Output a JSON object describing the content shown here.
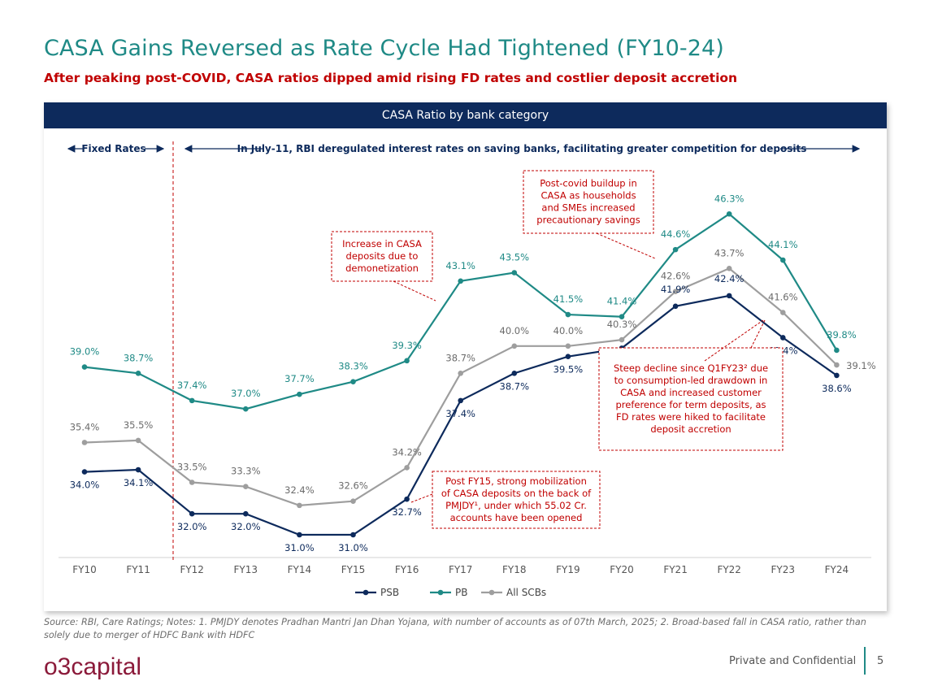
{
  "page": {
    "title": "CASA Gains Reversed as Rate Cycle Had Tightened (FY10-24)",
    "subtitle": "After peaking post-COVID, CASA ratios dipped amid rising FD rates and costlier deposit accretion",
    "footnote": "Source: RBI, Care Ratings; Notes: 1. PMJDY denotes Pradhan Mantri Jan Dhan Yojana, with number of accounts as of 07th March, 2025; 2. Broad-based fall in CASA ratio, rather than solely due to merger of HDFC Bank with HDFC",
    "logo_text": "o3capital",
    "confidential": "Private and Confidential",
    "page_number": "5"
  },
  "colors": {
    "title": "#1f8a86",
    "subtitle": "#c00000",
    "header": "#0d2a5c",
    "psb": "#0d2a5c",
    "pb": "#1f8a86",
    "scb": "#9e9e9e",
    "annotation": "#c00000"
  },
  "chart_data": {
    "type": "line",
    "title": "CASA Ratio by bank category",
    "categories": [
      "FY10",
      "FY11",
      "FY12",
      "FY13",
      "FY14",
      "FY15",
      "FY16",
      "FY17",
      "FY18",
      "FY19",
      "FY20",
      "FY21",
      "FY22",
      "FY23",
      "FY24"
    ],
    "series": [
      {
        "name": "PSB",
        "color": "#0d2a5c",
        "values": [
          34.0,
          34.1,
          32.0,
          32.0,
          31.0,
          31.0,
          32.7,
          37.4,
          38.7,
          39.5,
          39.9,
          41.9,
          42.4,
          40.4,
          38.6
        ],
        "labels": [
          "34.0%",
          "34.1%",
          "32.0%",
          "32.0%",
          "31.0%",
          "31.0%",
          "32.7%",
          "37.4%",
          "38.7%",
          "39.5%",
          "39.9%",
          "41.9%",
          "42.4%",
          "40.4%",
          "38.6%"
        ]
      },
      {
        "name": "PB",
        "color": "#1f8a86",
        "values": [
          39.0,
          38.7,
          37.4,
          37.0,
          37.7,
          38.3,
          39.3,
          43.1,
          43.5,
          41.5,
          41.4,
          44.6,
          46.3,
          44.1,
          39.8
        ],
        "labels": [
          "39.0%",
          "38.7%",
          "37.4%",
          "37.0%",
          "37.7%",
          "38.3%",
          "39.3%",
          "43.1%",
          "43.5%",
          "41.5%",
          "41.4%",
          "44.6%",
          "46.3%",
          "44.1%",
          "39.8%"
        ]
      },
      {
        "name": "All SCBs",
        "color": "#9e9e9e",
        "values": [
          35.4,
          35.5,
          33.5,
          33.3,
          32.4,
          32.6,
          34.2,
          38.7,
          40.0,
          40.0,
          40.3,
          42.6,
          43.7,
          41.6,
          39.1
        ],
        "labels": [
          "35.4%",
          "35.5%",
          "33.5%",
          "33.3%",
          "32.4%",
          "32.6%",
          "34.2%",
          "38.7%",
          "40.0%",
          "40.0%",
          "40.3%",
          "42.6%",
          "43.7%",
          "41.6%",
          "39.1%"
        ]
      }
    ],
    "ylim": [
      29.5,
      48
    ],
    "grid": false,
    "legend": "bottom-center",
    "regime_labels": {
      "fixed": "Fixed Rates",
      "deregulated": "In July-11, RBI deregulated interest rates on saving banks, facilitating greater competition for deposits"
    },
    "annotations": [
      {
        "id": "demonetization",
        "lines": [
          "Increase in CASA",
          "deposits due to",
          "demonetization"
        ]
      },
      {
        "id": "covid",
        "lines": [
          "Post-covid buildup in",
          "CASA as households",
          "and SMEs increased",
          "precautionary savings"
        ]
      },
      {
        "id": "decline",
        "lines": [
          "Steep decline since Q1FY23² due",
          "to consumption-led drawdown in",
          "CASA and increased customer",
          "preference for term deposits, as",
          "FD rates were hiked to facilitate",
          "deposit accretion"
        ]
      },
      {
        "id": "pmjdy",
        "lines": [
          "Post FY15, strong mobilization",
          "of CASA deposits on the back of",
          "PMJDY¹, under which 55.02 Cr.",
          "accounts have been opened"
        ]
      }
    ]
  }
}
